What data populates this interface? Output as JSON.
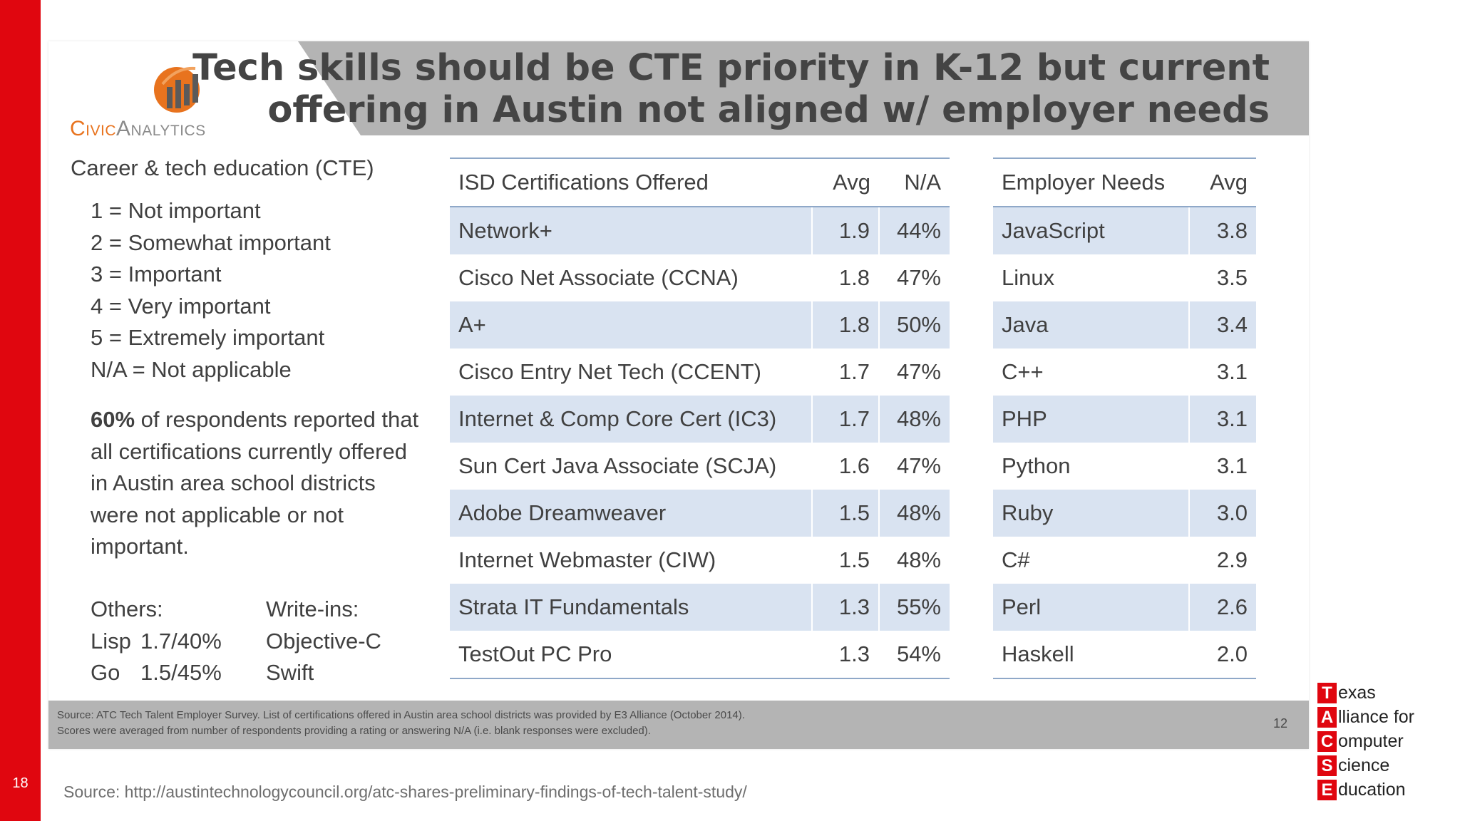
{
  "slide_number": "18",
  "logo": {
    "part1": "Civic",
    "part2": "Analytics"
  },
  "title": "Tech skills should be CTE priority in K-12 but current\noffering in Austin not aligned w/ employer needs",
  "left": {
    "heading": "Career & tech education (CTE)",
    "scale": [
      "1 = Not important",
      "2 = Somewhat important",
      "3 = Important",
      "4 = Very important",
      "5 = Extremely important",
      "N/A = Not applicable"
    ],
    "stat_bold": "60%",
    "stat_text": " of respondents reported that all certifications currently offered in Austin area school districts were not applicable or not important.",
    "others_header": "Others:",
    "others": [
      {
        "name": "Lisp",
        "value": "1.7/40%"
      },
      {
        "name": "Go",
        "value": "1.5/45%"
      }
    ],
    "writeins_header": "Write-ins:",
    "writeins": [
      "Objective-C",
      "Swift"
    ]
  },
  "isd_table": {
    "headers": [
      "ISD Certifications Offered",
      "Avg",
      "N/A"
    ],
    "rows": [
      [
        "Network+",
        "1.9",
        "44%"
      ],
      [
        "Cisco Net Associate (CCNA)",
        "1.8",
        "47%"
      ],
      [
        "A+",
        "1.8",
        "50%"
      ],
      [
        "Cisco Entry Net Tech (CCENT)",
        "1.7",
        "47%"
      ],
      [
        "Internet & Comp Core Cert (IC3)",
        "1.7",
        "48%"
      ],
      [
        "Sun Cert Java Associate (SCJA)",
        "1.6",
        "47%"
      ],
      [
        "Adobe Dreamweaver",
        "1.5",
        "48%"
      ],
      [
        "Internet Webmaster (CIW)",
        "1.5",
        "48%"
      ],
      [
        "Strata IT Fundamentals",
        "1.3",
        "55%"
      ],
      [
        "TestOut PC Pro",
        "1.3",
        "54%"
      ]
    ]
  },
  "employer_table": {
    "headers": [
      "Employer Needs",
      "Avg"
    ],
    "rows": [
      [
        "JavaScript",
        "3.8"
      ],
      [
        "Linux",
        "3.5"
      ],
      [
        "Java",
        "3.4"
      ],
      [
        "C++",
        "3.1"
      ],
      [
        "PHP",
        "3.1"
      ],
      [
        "Python",
        "3.1"
      ],
      [
        "Ruby",
        "3.0"
      ],
      [
        "C#",
        "2.9"
      ],
      [
        "Perl",
        "2.6"
      ],
      [
        "Haskell",
        "2.0"
      ]
    ]
  },
  "source_note": {
    "line1": "Source: ATC Tech Talent Employer Survey. List of certifications offered in Austin area school districts was provided by E3 Alliance (October 2014).",
    "line2": "Scores were averaged from number of respondents providing a rating or answering N/A (i.e. blank responses were excluded).",
    "page": "12"
  },
  "source_url": "Source: http://austintechnologycouncil.org/atc-shares-preliminary-findings-of-tech-talent-study/",
  "tacse": [
    {
      "letter": "T",
      "rest": "exas"
    },
    {
      "letter": "A",
      "rest": "lliance for"
    },
    {
      "letter": "C",
      "rest": "omputer"
    },
    {
      "letter": "S",
      "rest": "cience"
    },
    {
      "letter": "E",
      "rest": "ducation"
    }
  ],
  "colors": {
    "accent_red": "#e0060f",
    "logo_orange": "#e8731e",
    "row_shade": "#d9e3f1",
    "banner_gray": "#b4b4b4"
  }
}
